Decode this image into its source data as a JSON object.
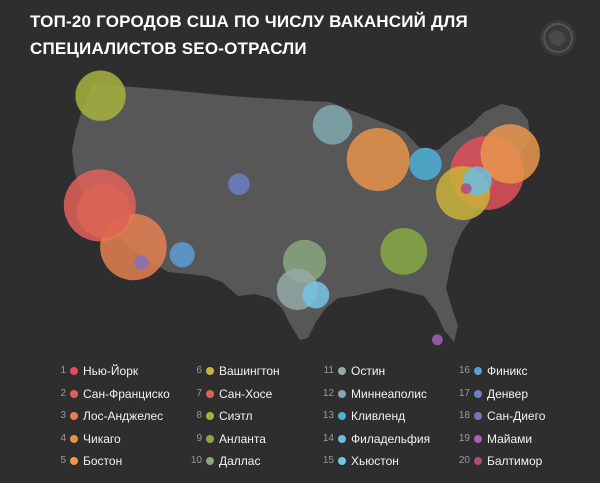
{
  "title_line1": "ТОП-20 ГОРОДОВ США ПО ЧИСЛУ ВАКАНСИЙ ДЛЯ",
  "title_line2": "СПЕЦИАЛИСТОВ SEO-ОТРАСЛИ",
  "logo_icon": "globe-icon",
  "map_color": "#575758",
  "background": "#2e2e2f",
  "chart_data": {
    "type": "bubble-map",
    "region": "USA",
    "legend_placement": "bottom",
    "cities": [
      {
        "rank": "1",
        "name": "Нью-Йорк",
        "color": "#e0505a",
        "size": 41,
        "lon": -74.0,
        "lat": 40.7
      },
      {
        "rank": "2",
        "name": "Сан-Франциско",
        "color": "#e0605a",
        "size": 40,
        "lon": -122.4,
        "lat": 37.8
      },
      {
        "rank": "3",
        "name": "Лос-Анджелес",
        "color": "#e47f52",
        "size": 37,
        "lon": -118.2,
        "lat": 34.1
      },
      {
        "rank": "4",
        "name": "Чикаго",
        "color": "#e8924a",
        "size": 35,
        "lon": -87.6,
        "lat": 41.9
      },
      {
        "rank": "5",
        "name": "Бостон",
        "color": "#e8974e",
        "size": 33,
        "lon": -71.1,
        "lat": 42.4
      },
      {
        "rank": "6",
        "name": "Вашингтон",
        "color": "#c9b23a",
        "size": 30,
        "lon": -77.0,
        "lat": 38.9
      },
      {
        "rank": "7",
        "name": "Сан-Хосе",
        "color": "#dc6452",
        "size": 30,
        "lon": -121.9,
        "lat": 37.3
      },
      {
        "rank": "8",
        "name": "Сиэтл",
        "color": "#a6b23c",
        "size": 28,
        "lon": -122.3,
        "lat": 47.6
      },
      {
        "rank": "9",
        "name": "Анланта",
        "color": "#86a843",
        "size": 26,
        "lon": -84.4,
        "lat": 33.7
      },
      {
        "rank": "10",
        "name": "Даллас",
        "color": "#8aa680",
        "size": 24,
        "lon": -96.8,
        "lat": 32.8
      },
      {
        "rank": "11",
        "name": "Остин",
        "color": "#94a9a6",
        "size": 23,
        "lon": -97.7,
        "lat": 30.3
      },
      {
        "rank": "12",
        "name": "Миннеаполис",
        "color": "#80a8b0",
        "size": 22,
        "lon": -93.3,
        "lat": 45.0
      },
      {
        "rank": "13",
        "name": "Кливленд",
        "color": "#4cb0d8",
        "size": 18,
        "lon": -81.7,
        "lat": 41.5
      },
      {
        "rank": "14",
        "name": "Филадельфия",
        "color": "#6cbde0",
        "size": 16,
        "lon": -75.2,
        "lat": 40.0
      },
      {
        "rank": "15",
        "name": "Хьюстон",
        "color": "#74c4e6",
        "size": 15,
        "lon": -95.4,
        "lat": 29.8
      },
      {
        "rank": "16",
        "name": "Финикс",
        "color": "#5d9ed6",
        "size": 14,
        "lon": -112.1,
        "lat": 33.4
      },
      {
        "rank": "17",
        "name": "Денвер",
        "color": "#6b7fc6",
        "size": 12,
        "lon": -105.0,
        "lat": 39.7
      },
      {
        "rank": "18",
        "name": "Сан-Диего",
        "color": "#8570c0",
        "size": 8,
        "lon": -117.2,
        "lat": 32.7
      },
      {
        "rank": "19",
        "name": "Майами",
        "color": "#a85fb8",
        "size": 6,
        "lon": -80.2,
        "lat": 25.8
      },
      {
        "rank": "20",
        "name": "Балтимор",
        "color": "#b5477f",
        "size": 6,
        "lon": -76.6,
        "lat": 39.3
      }
    ]
  }
}
